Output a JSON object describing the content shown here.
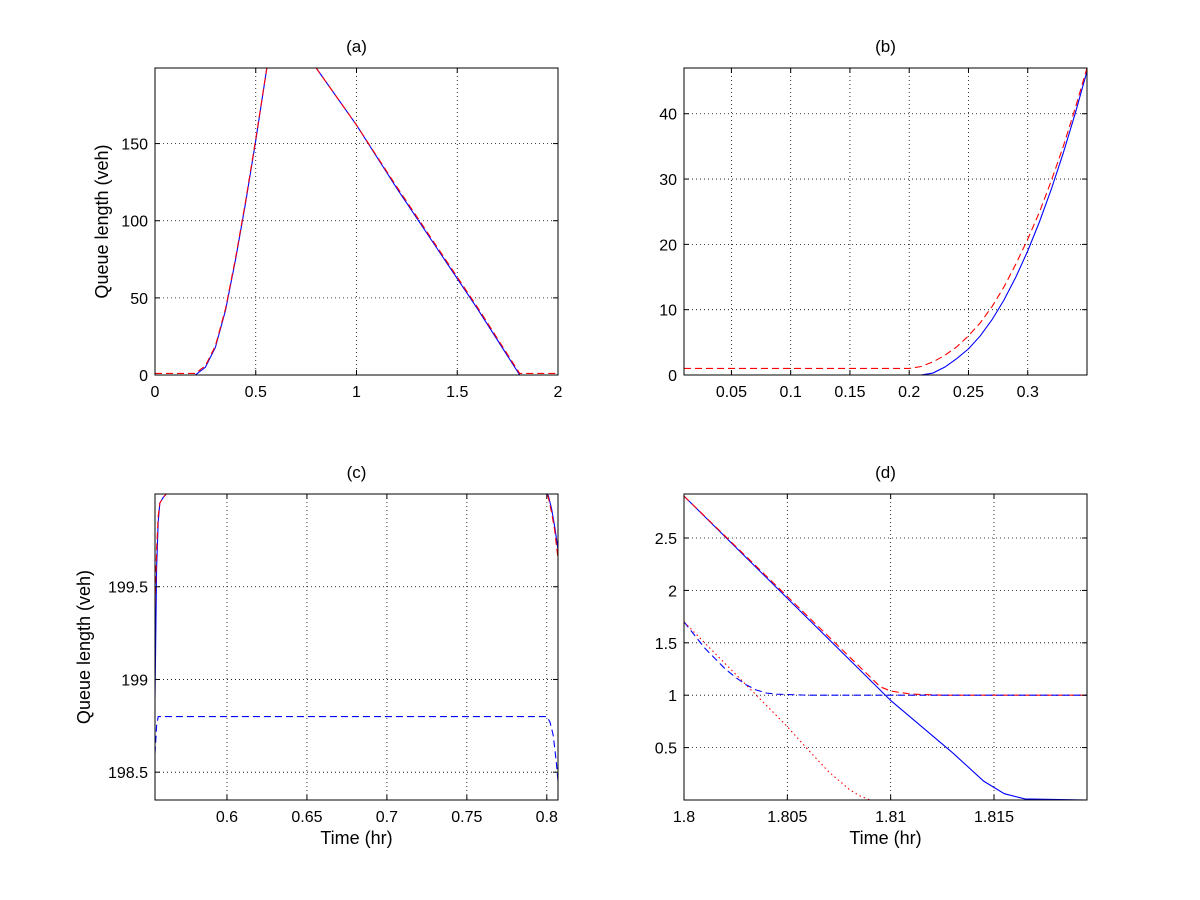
{
  "figure": {
    "background": "#ffffff"
  },
  "colors": {
    "red": "#ff0000",
    "blue": "#0000ff",
    "grid": "#000000",
    "axis": "#000000"
  },
  "chart_data": [
    {
      "type": "line",
      "title": "(a)",
      "xlabel": "",
      "ylabel": "Queue length (veh)",
      "xlim": [
        0,
        2
      ],
      "ylim": [
        0,
        199
      ],
      "xticks": [
        0,
        0.5,
        1,
        1.5,
        2
      ],
      "xtick_labels": [
        "0",
        "0.5",
        "1",
        "1.5",
        "2"
      ],
      "yticks": [
        0,
        50,
        100,
        150
      ],
      "ytick_labels": [
        "0",
        "50",
        "100",
        "150"
      ],
      "grid": true,
      "series": [
        {
          "color": "#0000ff",
          "style": "solid",
          "x": [
            0,
            0.2,
            0.25,
            0.3,
            0.35,
            0.4,
            0.45,
            0.5,
            0.555,
            0.8,
            1.0,
            1.2,
            1.4,
            1.6,
            1.81,
            2.0
          ],
          "y": [
            0,
            0,
            5,
            18,
            42,
            75,
            112,
            152,
            199,
            199,
            162,
            121,
            82,
            43,
            0,
            0
          ]
        },
        {
          "color": "#ff0000",
          "style": "dashed",
          "x": [
            0,
            0.2,
            0.25,
            0.3,
            0.35,
            0.4,
            0.45,
            0.5,
            0.555,
            0.8,
            1.0,
            1.2,
            1.4,
            1.6,
            1.81,
            2.0
          ],
          "y": [
            1,
            1,
            6,
            19,
            43,
            76,
            113,
            153,
            199,
            199,
            162,
            122,
            83,
            44,
            1,
            1
          ]
        }
      ]
    },
    {
      "type": "line",
      "title": "(b)",
      "xlabel": "",
      "ylabel": "",
      "xlim": [
        0.01,
        0.35
      ],
      "ylim": [
        0,
        47
      ],
      "xticks": [
        0.05,
        0.1,
        0.15,
        0.2,
        0.25,
        0.3
      ],
      "xtick_labels": [
        "0.05",
        "0.1",
        "0.15",
        "0.2",
        "0.25",
        "0.3"
      ],
      "yticks": [
        0,
        10,
        20,
        30,
        40
      ],
      "ytick_labels": [
        "0",
        "10",
        "20",
        "30",
        "40"
      ],
      "grid": true,
      "series": [
        {
          "color": "#0000ff",
          "style": "solid",
          "x": [
            0.01,
            0.21,
            0.22,
            0.23,
            0.24,
            0.25,
            0.26,
            0.27,
            0.28,
            0.29,
            0.3,
            0.31,
            0.32,
            0.33,
            0.34,
            0.35
          ],
          "y": [
            0,
            0,
            0.3,
            1.2,
            2.5,
            4.0,
            6.0,
            8.5,
            11.5,
            15.0,
            19.0,
            23.5,
            28.5,
            34.0,
            40.0,
            46.5
          ]
        },
        {
          "color": "#ff0000",
          "style": "dashed",
          "x": [
            0.01,
            0.2,
            0.21,
            0.22,
            0.23,
            0.24,
            0.25,
            0.26,
            0.27,
            0.28,
            0.29,
            0.3,
            0.31,
            0.32,
            0.33,
            0.34,
            0.35
          ],
          "y": [
            1,
            1,
            1.3,
            2.0,
            3.0,
            4.3,
            6.0,
            8.0,
            10.5,
            13.5,
            17.0,
            20.8,
            25.0,
            29.8,
            35.0,
            40.8,
            47.0
          ]
        }
      ]
    },
    {
      "type": "line",
      "title": "(c)",
      "xlabel": "Time (hr)",
      "ylabel": "Queue length (veh)",
      "xlim": [
        0.555,
        0.807
      ],
      "ylim": [
        198.35,
        200.0
      ],
      "xticks": [
        0.6,
        0.65,
        0.7,
        0.75,
        0.8
      ],
      "xtick_labels": [
        "0.6",
        "0.65",
        "0.7",
        "0.75",
        "0.8"
      ],
      "yticks": [
        198.5,
        199,
        199.5
      ],
      "ytick_labels": [
        "198.5",
        "199",
        "199.5"
      ],
      "grid": true,
      "series": [
        {
          "color": "#0000ff",
          "style": "solid",
          "x": [
            0.555,
            0.556,
            0.557,
            0.558,
            0.56,
            0.562,
            0.8,
            0.801,
            0.803,
            0.805,
            0.807
          ],
          "y": [
            198.9,
            199.6,
            199.85,
            199.95,
            199.98,
            200.0,
            200.0,
            199.99,
            199.92,
            199.82,
            199.7
          ]
        },
        {
          "color": "#ff0000",
          "style": "dashed",
          "x": [
            0.555,
            0.556,
            0.557,
            0.558,
            0.56,
            0.562,
            0.8,
            0.801,
            0.803,
            0.805,
            0.807
          ],
          "y": [
            199.4,
            199.7,
            199.88,
            199.95,
            199.98,
            200.0,
            200.0,
            199.98,
            199.9,
            199.8,
            199.65
          ]
        },
        {
          "color": "#0000ff",
          "style": "dashed",
          "x": [
            0.555,
            0.556,
            0.557,
            0.56,
            0.8,
            0.802,
            0.804,
            0.806,
            0.807
          ],
          "y": [
            198.6,
            198.75,
            198.8,
            198.8,
            198.8,
            198.77,
            198.7,
            198.55,
            198.45
          ]
        }
      ]
    },
    {
      "type": "line",
      "title": "(d)",
      "xlabel": "Time (hr)",
      "ylabel": "",
      "xlim": [
        1.8,
        1.8195
      ],
      "ylim": [
        0,
        2.92
      ],
      "xticks": [
        1.8,
        1.805,
        1.81,
        1.815
      ],
      "xtick_labels": [
        "1.8",
        "1.805",
        "1.81",
        "1.815"
      ],
      "yticks": [
        0.5,
        1,
        1.5,
        2,
        2.5
      ],
      "ytick_labels": [
        "0.5",
        "1",
        "1.5",
        "2",
        "2.5"
      ],
      "grid": true,
      "series": [
        {
          "color": "#0000ff",
          "style": "solid",
          "x": [
            1.8,
            1.81,
            1.813,
            1.8145,
            1.8155,
            1.8165,
            1.8195
          ],
          "y": [
            2.9,
            0.95,
            0.45,
            0.18,
            0.06,
            0.01,
            0.0
          ]
        },
        {
          "color": "#ff0000",
          "style": "dashed",
          "x": [
            1.8,
            1.8095,
            1.81,
            1.811,
            1.8125,
            1.8195
          ],
          "y": [
            2.9,
            1.08,
            1.04,
            1.01,
            1.0,
            1.0
          ]
        },
        {
          "color": "#0000ff",
          "style": "dashed",
          "x": [
            1.8,
            1.801,
            1.802,
            1.8025,
            1.803,
            1.8035,
            1.804,
            1.8045,
            1.806,
            1.8195
          ],
          "y": [
            1.7,
            1.45,
            1.25,
            1.17,
            1.1,
            1.05,
            1.02,
            1.01,
            1.0,
            1.0
          ]
        },
        {
          "color": "#ff0000",
          "style": "dotted",
          "x": [
            1.8,
            1.803,
            1.804,
            1.805,
            1.806,
            1.807,
            1.808,
            1.8085,
            1.809,
            1.8195
          ],
          "y": [
            1.7,
            1.1,
            0.9,
            0.7,
            0.48,
            0.27,
            0.1,
            0.04,
            0.0,
            0.0
          ]
        }
      ]
    }
  ]
}
